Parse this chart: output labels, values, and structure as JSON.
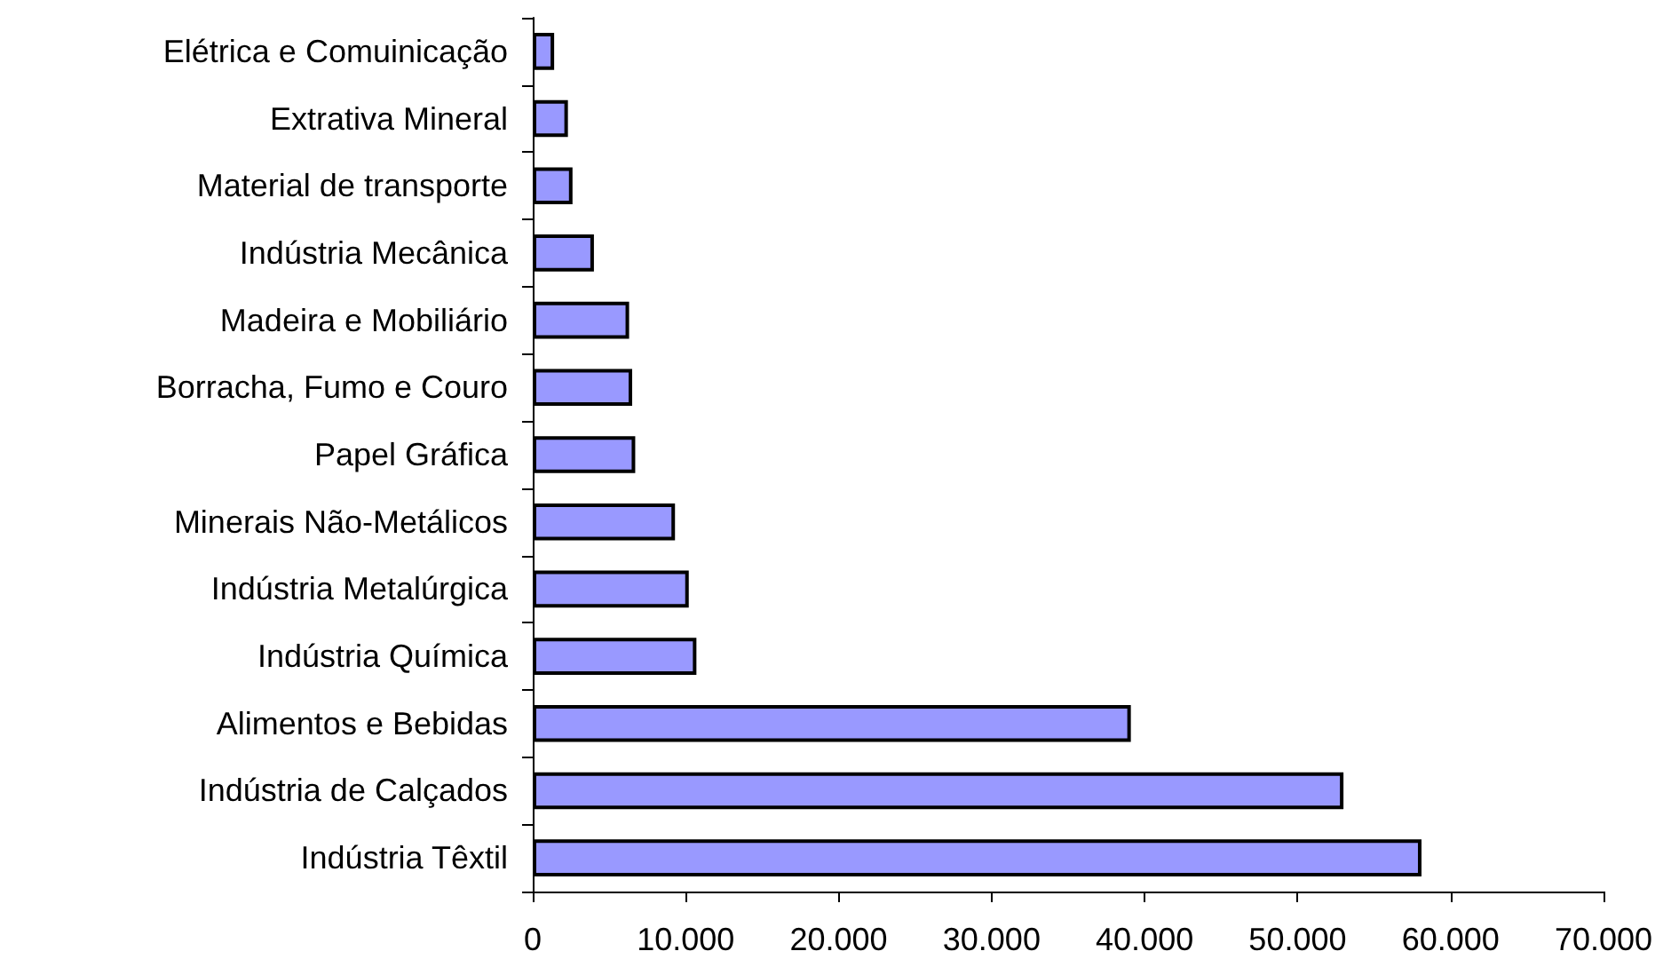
{
  "chart_data": {
    "type": "bar",
    "orientation": "horizontal",
    "categories": [
      "Elétrica e Comuinicação",
      "Extrativa Mineral",
      "Material de transporte",
      "Indústria Mecânica",
      "Madeira e Mobiliário",
      "Borracha, Fumo e Couro",
      "Papel Gráfica",
      "Minerais Não-Metálicos",
      "Indústria Metalúrgica",
      "Indústria Química",
      "Alimentos e Bebidas",
      "Indústria de Calçados",
      "Indústria Têxtil"
    ],
    "values": [
      1400,
      2300,
      2600,
      4000,
      6300,
      6500,
      6700,
      9300,
      10200,
      10700,
      39100,
      53000,
      58100
    ],
    "color": "#9999ff",
    "xlim": [
      0,
      70000
    ],
    "xticks": [
      {
        "value": 0,
        "label": "0"
      },
      {
        "value": 10000,
        "label": "10.000"
      },
      {
        "value": 20000,
        "label": "20.000"
      },
      {
        "value": 30000,
        "label": "30.000"
      },
      {
        "value": 40000,
        "label": "40.000"
      },
      {
        "value": 50000,
        "label": "50.000"
      },
      {
        "value": 60000,
        "label": "60.000"
      },
      {
        "value": 70000,
        "label": "70.000"
      }
    ],
    "grid": false
  }
}
